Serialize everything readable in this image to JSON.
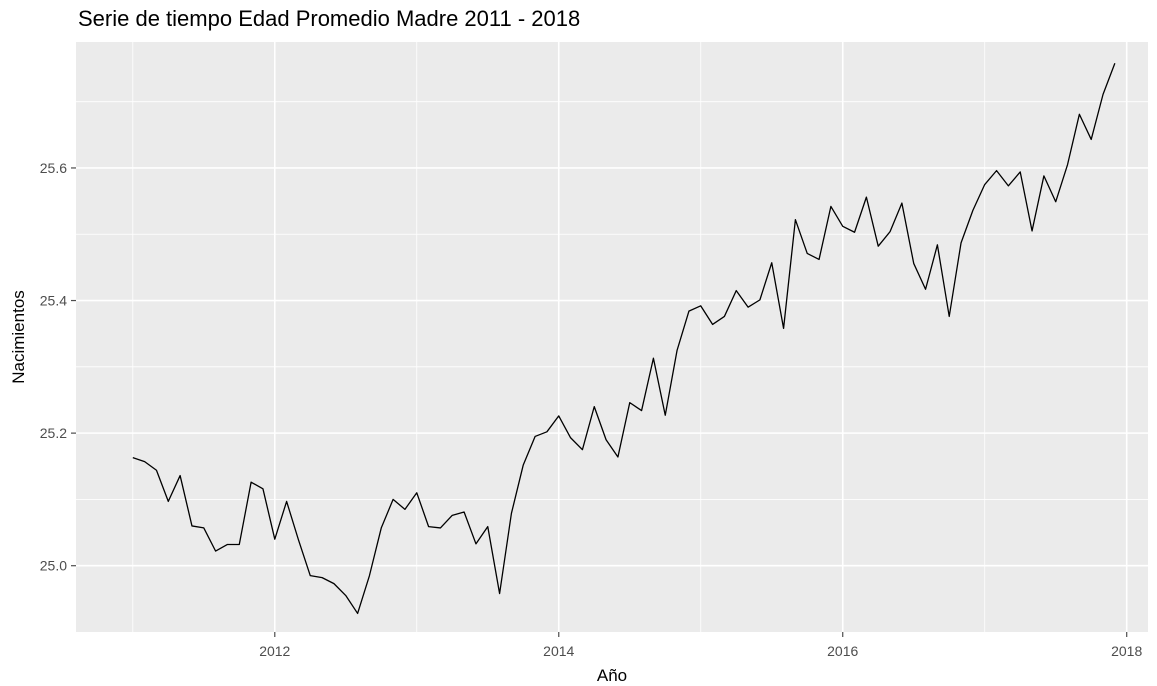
{
  "chart_data": {
    "type": "line",
    "title": "Serie de tiempo Edad Promedio Madre 2011 - 2018",
    "xlabel": "Año",
    "ylabel": "Nacimientos",
    "xlim": [
      2010.6,
      2018.15
    ],
    "ylim": [
      24.9,
      25.79
    ],
    "x_ticks": [
      2012,
      2014,
      2016,
      2018
    ],
    "x_tick_labels": [
      "2012",
      "2014",
      "2016",
      "2018"
    ],
    "y_ticks": [
      25.0,
      25.2,
      25.4,
      25.6
    ],
    "y_tick_labels": [
      "25.0",
      "25.2",
      "25.4",
      "25.6"
    ],
    "grid": true,
    "colors": {
      "panel": "#ebebeb",
      "grid": "#ffffff",
      "line": "#000000",
      "ticks": "#4d4d4d"
    },
    "series": [
      {
        "x_start": 2011.0,
        "x_step": 0.08333333,
        "values": [
          25.163,
          25.157,
          25.144,
          25.097,
          25.136,
          25.06,
          25.057,
          25.022,
          25.032,
          25.032,
          25.126,
          25.116,
          25.04,
          25.097,
          25.039,
          24.985,
          24.982,
          24.973,
          24.955,
          24.928,
          24.985,
          25.057,
          25.1,
          25.085,
          25.11,
          25.059,
          25.057,
          25.076,
          25.081,
          25.033,
          25.059,
          24.958,
          25.079,
          25.152,
          25.195,
          25.202,
          25.226,
          25.193,
          25.175,
          25.24,
          25.19,
          25.164,
          25.246,
          25.234,
          25.313,
          25.227,
          25.325,
          25.384,
          25.392,
          25.364,
          25.376,
          25.415,
          25.39,
          25.401,
          25.457,
          25.358,
          25.522,
          25.471,
          25.462,
          25.542,
          25.512,
          25.503,
          25.556,
          25.482,
          25.504,
          25.547,
          25.456,
          25.417,
          25.484,
          25.376,
          25.487,
          25.536,
          25.575,
          25.596,
          25.573,
          25.594,
          25.505,
          25.588,
          25.549,
          25.605,
          25.681,
          25.643,
          25.711,
          25.758
        ]
      }
    ]
  }
}
